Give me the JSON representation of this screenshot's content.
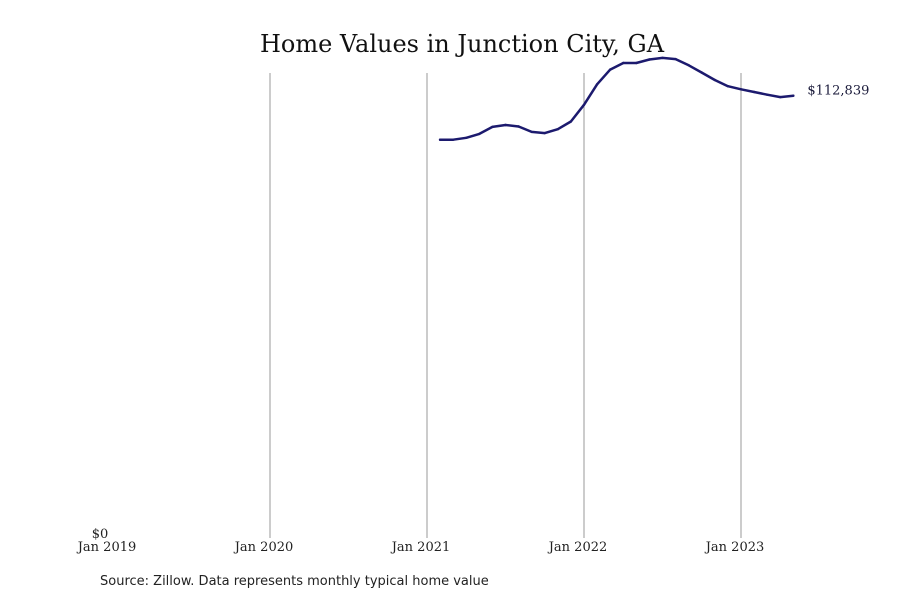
{
  "chart_data": {
    "type": "line",
    "title": "Home Values in Junction City, GA",
    "source_note": "Source: Zillow. Data represents monthly typical home value",
    "x_ticks": [
      "Jan 2019",
      "Jan 2020",
      "Jan 2021",
      "Jan 2022",
      "Jan 2023"
    ],
    "y_ticks": [
      "$0"
    ],
    "ylim": [
      0,
      120000
    ],
    "grid": "vertical lines at each January",
    "last_value_label": "$112,839",
    "series": [
      {
        "color": "#1c1a6e",
        "x": [
          "2021-02",
          "2021-03",
          "2021-04",
          "2021-05",
          "2021-06",
          "2021-07",
          "2021-08",
          "2021-09",
          "2021-10",
          "2021-11",
          "2021-12",
          "2022-01",
          "2022-02",
          "2022-03",
          "2022-04",
          "2022-05",
          "2022-06",
          "2022-07",
          "2022-08",
          "2022-09",
          "2022-10",
          "2022-11",
          "2022-12",
          "2023-01",
          "2023-02",
          "2023-03",
          "2023-04",
          "2023-05"
        ],
        "y": [
          101500,
          101500,
          102000,
          103000,
          104800,
          105300,
          104900,
          103500,
          103200,
          104200,
          106200,
          110500,
          115800,
          119600,
          121300,
          121300,
          122200,
          122600,
          122300,
          120700,
          118800,
          116900,
          115300,
          114500,
          113800,
          113100,
          112500,
          112839
        ]
      }
    ]
  }
}
